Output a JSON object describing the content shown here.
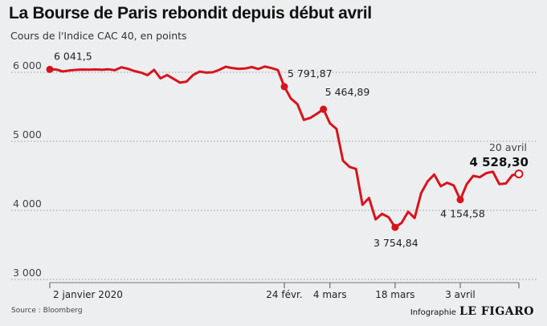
{
  "chart_data": {
    "type": "line",
    "title": "La Bourse de Paris rebondit depuis début avril",
    "subtitle": "Cours de l'Indice CAC 40, en points",
    "y_ticks": [
      3000,
      4000,
      5000,
      6000
    ],
    "y_tick_labels": [
      "3 000",
      "4 000",
      "5 000",
      "6 000"
    ],
    "ylim": [
      3000,
      6300
    ],
    "x_tick_labels": [
      "2 janvier 2020",
      "24 févr.",
      "4 mars",
      "18 mars",
      "3 avril"
    ],
    "x_tick_index": [
      0,
      36,
      43,
      53,
      63
    ],
    "grid": true,
    "series": [
      {
        "values": [
          6041.5,
          6040,
          6012,
          6025,
          6035,
          6040,
          6038,
          6041,
          6036,
          6043,
          6030,
          6072,
          6050,
          6018,
          5995,
          5958,
          6035,
          5912,
          5960,
          5905,
          5850,
          5865,
          5960,
          6010,
          5995,
          6000,
          6035,
          6080,
          6060,
          6050,
          6055,
          6075,
          6048,
          6083,
          6062,
          6032,
          5791.87,
          5620,
          5540,
          5310,
          5340,
          5400,
          5464.89,
          5260,
          5180,
          4720,
          4630,
          4600,
          4080,
          4180,
          3870,
          3950,
          3900,
          3754.84,
          3820,
          3980,
          3890,
          4250,
          4420,
          4520,
          4350,
          4400,
          4360,
          4154.58,
          4380,
          4500,
          4480,
          4540,
          4560,
          4380,
          4390,
          4510,
          4528.3
        ]
      }
    ],
    "annotations": [
      {
        "index": 0,
        "label": "6 041,5"
      },
      {
        "index": 36,
        "label": "5 791,87"
      },
      {
        "index": 42,
        "label": "5 464,89"
      },
      {
        "index": 53,
        "label": "3 754,84"
      },
      {
        "index": 63,
        "label": "4 154,58"
      }
    ],
    "last_point": {
      "date": "20 avril",
      "label": "4 528,30"
    },
    "colors": {
      "line": "#d7141b",
      "grid": "#9a9a9a",
      "background": "#eceef0"
    }
  },
  "footer": {
    "source": "Source : Bloomberg",
    "credit_label": "Infographie",
    "credit_logo": "LE FIGARO"
  }
}
